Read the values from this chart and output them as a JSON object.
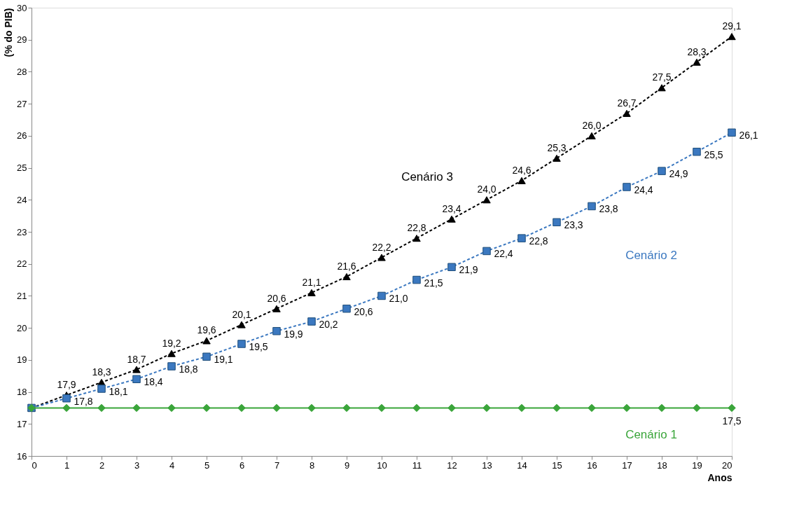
{
  "chart_data": {
    "type": "line",
    "xlabel": "Anos",
    "ylabel": "(% do PIB)",
    "x": [
      0,
      1,
      2,
      3,
      4,
      5,
      6,
      7,
      8,
      9,
      10,
      11,
      12,
      13,
      14,
      15,
      16,
      17,
      18,
      19,
      20
    ],
    "series": [
      {
        "name": "Cenário 3",
        "color": "#000000",
        "marker": "triangle",
        "line_style": "dashed",
        "values": [
          17.5,
          17.9,
          18.3,
          18.7,
          19.2,
          19.6,
          20.1,
          20.6,
          21.1,
          21.6,
          22.2,
          22.8,
          23.4,
          24.0,
          24.6,
          25.3,
          26.0,
          26.7,
          27.5,
          28.3,
          29.1
        ],
        "value_labels": [
          null,
          "17,9",
          "18,3",
          "18,7",
          "19,2",
          "19,6",
          "20,1",
          "20,6",
          "21,1",
          "21,6",
          "22,2",
          "22,8",
          "23,4",
          "24,0",
          "24,6",
          "25,3",
          "26,0",
          "26,7",
          "27,5",
          "28,3",
          "29,1"
        ]
      },
      {
        "name": "Cenário 2",
        "color": "#3b78c0",
        "marker": "square",
        "line_style": "dashed",
        "values": [
          17.5,
          17.8,
          18.1,
          18.4,
          18.8,
          19.1,
          19.5,
          19.9,
          20.2,
          20.6,
          21.0,
          21.5,
          21.9,
          22.4,
          22.8,
          23.3,
          23.8,
          24.4,
          24.9,
          25.5,
          26.1
        ],
        "value_labels": [
          null,
          "17,8",
          "18,1",
          "18,4",
          "18,8",
          "19,1",
          "19,5",
          "19,9",
          "20,2",
          "20,6",
          "21,0",
          "21,5",
          "21,9",
          "22,4",
          "22,8",
          "23,3",
          "23,8",
          "24,4",
          "24,9",
          "25,5",
          "26,1"
        ]
      },
      {
        "name": "Cenário 1",
        "color": "#3aa53a",
        "marker": "diamond",
        "line_style": "solid",
        "values": [
          17.5,
          17.5,
          17.5,
          17.5,
          17.5,
          17.5,
          17.5,
          17.5,
          17.5,
          17.5,
          17.5,
          17.5,
          17.5,
          17.5,
          17.5,
          17.5,
          17.5,
          17.5,
          17.5,
          17.5,
          17.5
        ],
        "value_labels": [
          null,
          null,
          null,
          null,
          null,
          null,
          null,
          null,
          null,
          null,
          null,
          null,
          null,
          null,
          null,
          null,
          null,
          null,
          null,
          null,
          "17,5"
        ]
      }
    ],
    "xlim": [
      0,
      20
    ],
    "xticks": [
      0,
      1,
      2,
      3,
      4,
      5,
      6,
      7,
      8,
      9,
      10,
      11,
      12,
      13,
      14,
      15,
      16,
      17,
      18,
      19,
      20
    ],
    "ylim": [
      16,
      30
    ],
    "yticks": [
      16,
      17,
      18,
      19,
      20,
      21,
      22,
      23,
      24,
      25,
      26,
      27,
      28,
      29,
      30
    ],
    "grid": false
  }
}
